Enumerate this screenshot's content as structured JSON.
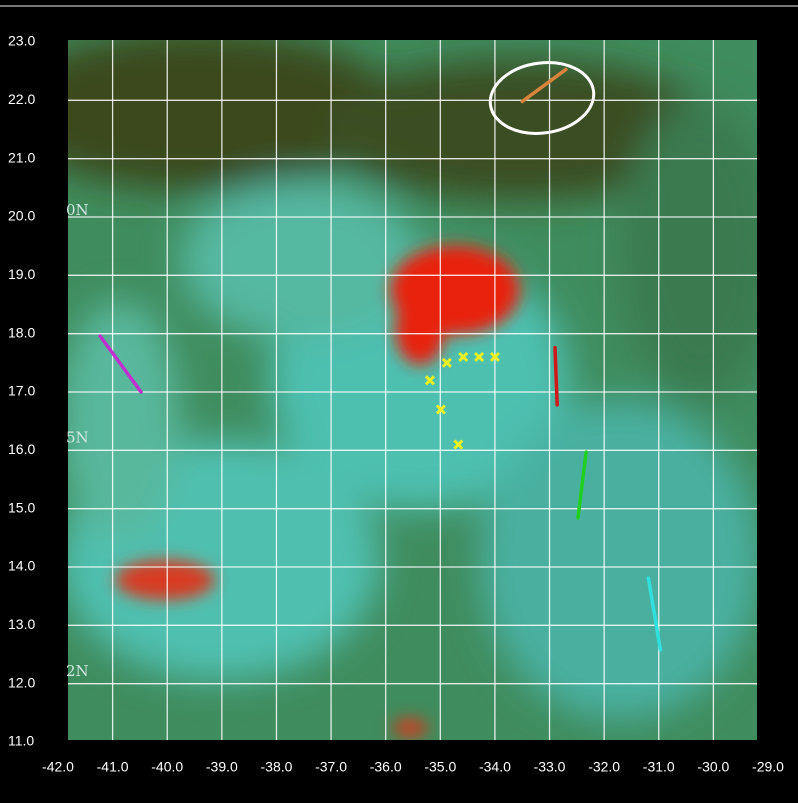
{
  "chart_data": {
    "type": "scatter",
    "xlim": [
      -42,
      -29
    ],
    "ylim": [
      11,
      23
    ],
    "xticks": [
      {
        "value": -42,
        "label": "-42.0"
      },
      {
        "value": -41,
        "label": "-41.0"
      },
      {
        "value": -40,
        "label": "-40.0"
      },
      {
        "value": -39,
        "label": "-39.0"
      },
      {
        "value": -38,
        "label": "-38.0"
      },
      {
        "value": -37,
        "label": "-37.0"
      },
      {
        "value": -36,
        "label": "-36.0"
      },
      {
        "value": -35,
        "label": "-35.0"
      },
      {
        "value": -34,
        "label": "-34.0"
      },
      {
        "value": -33,
        "label": "-33.0"
      },
      {
        "value": -32,
        "label": "-32.0"
      },
      {
        "value": -31,
        "label": "-31.0"
      },
      {
        "value": -30,
        "label": "-30.0"
      },
      {
        "value": -29,
        "label": "-29.0"
      }
    ],
    "yticks": [
      {
        "value": 11,
        "label": "11.0"
      },
      {
        "value": 12,
        "label": "12.0"
      },
      {
        "value": 13,
        "label": "13.0"
      },
      {
        "value": 14,
        "label": "14.0"
      },
      {
        "value": 15,
        "label": "15.0"
      },
      {
        "value": 16,
        "label": "16.0"
      },
      {
        "value": 17,
        "label": "17.0"
      },
      {
        "value": 18,
        "label": "18.0"
      },
      {
        "value": 19,
        "label": "19.0"
      },
      {
        "value": 20,
        "label": "20.0"
      },
      {
        "value": 21,
        "label": "21.0"
      },
      {
        "value": 22,
        "label": "22.0"
      },
      {
        "value": 23,
        "label": "23.0"
      }
    ],
    "grid": true,
    "image_labels": [
      {
        "text": "0N",
        "lat": 20.1
      },
      {
        "text": "5N",
        "lat": 16.2
      },
      {
        "text": "2N",
        "lat": 12.2
      }
    ],
    "series": [
      {
        "style": "line",
        "color": "#c030d0",
        "x": [
          -41.23,
          -40.48
        ],
        "y": [
          17.96,
          17.0
        ]
      },
      {
        "style": "line",
        "color": "#d8843c",
        "x": [
          -33.5,
          -32.7
        ],
        "y": [
          21.98,
          22.53
        ]
      },
      {
        "style": "line",
        "color": "#d01818",
        "x": [
          -32.9,
          -32.86
        ],
        "y": [
          17.76,
          16.78
        ]
      },
      {
        "style": "line",
        "color": "#20d020",
        "x": [
          -32.33,
          -32.48
        ],
        "y": [
          15.97,
          14.84
        ]
      },
      {
        "style": "line",
        "color": "#30e0e0",
        "x": [
          -31.19,
          -30.97
        ],
        "y": [
          13.81,
          12.58
        ]
      },
      {
        "style": "marker",
        "color": "#f0f020",
        "x": [
          -35.19,
          -34.88,
          -34.58,
          -34.29,
          -34.0,
          -34.99,
          -34.67
        ],
        "y": [
          17.2,
          17.5,
          17.6,
          17.6,
          17.6,
          16.7,
          16.1
        ]
      }
    ]
  }
}
